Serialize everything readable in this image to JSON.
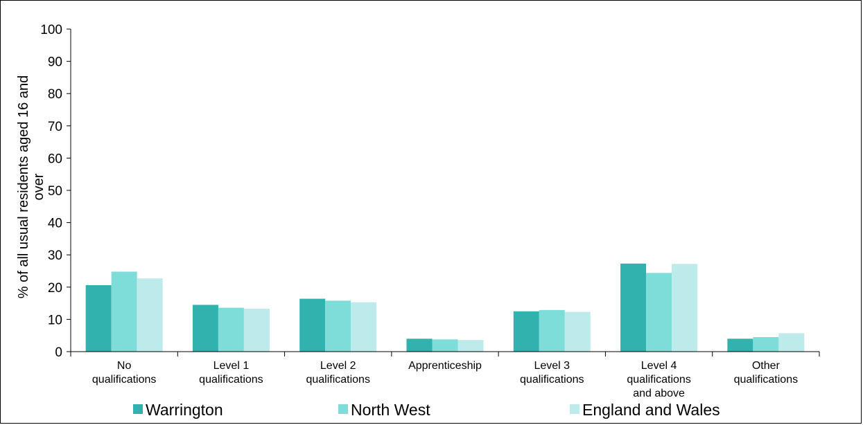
{
  "chart_data": {
    "type": "bar",
    "title": "",
    "ylabel": "% of all usual residents aged 16 and over",
    "xlabel": "",
    "ylim": [
      0,
      100
    ],
    "yticks": [
      0,
      10,
      20,
      30,
      40,
      50,
      60,
      70,
      80,
      90,
      100
    ],
    "grid": false,
    "legend_position": "bottom",
    "categories": [
      [
        "No",
        "qualifications"
      ],
      [
        "Level 1",
        "qualifications"
      ],
      [
        "Level 2",
        "qualifications"
      ],
      [
        "Apprenticeship"
      ],
      [
        "Level 3",
        "qualifications"
      ],
      [
        "Level 4",
        "qualifications",
        "and above"
      ],
      [
        "Other",
        "qualifications"
      ]
    ],
    "series": [
      {
        "name": "Warrington",
        "color": "#31b2ae",
        "values": [
          20.6,
          14.5,
          16.4,
          4.0,
          12.5,
          27.3,
          4.0
        ]
      },
      {
        "name": "North West",
        "color": "#7fddd9",
        "values": [
          24.8,
          13.6,
          15.8,
          3.8,
          12.9,
          24.4,
          4.5
        ]
      },
      {
        "name": "England and Wales",
        "color": "#bdebeb",
        "values": [
          22.7,
          13.3,
          15.3,
          3.6,
          12.3,
          27.2,
          5.7
        ]
      }
    ]
  }
}
